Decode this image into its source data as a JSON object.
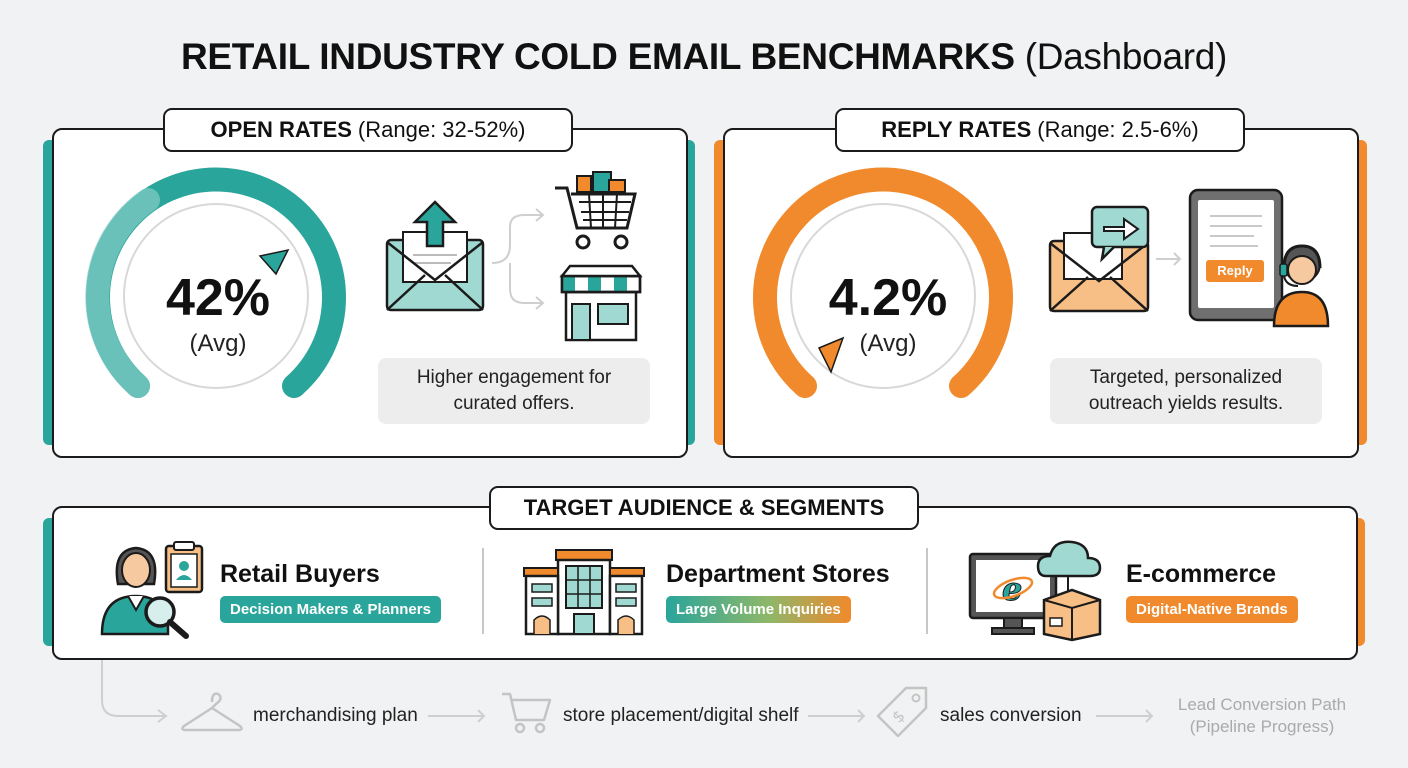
{
  "title": {
    "bold": "RETAIL INDUSTRY COLD EMAIL BENCHMARKS",
    "light": "(Dashboard)"
  },
  "open_rates": {
    "label_bold": "OPEN RATES",
    "label_range": "(Range: 32-52%)",
    "value": "42%",
    "avg": "(Avg)",
    "note_line1": "Higher engagement for",
    "note_line2": "curated offers.",
    "color": "#2aa59b"
  },
  "reply_rates": {
    "label_bold": "REPLY RATES",
    "label_range": "(Range: 2.5-6%)",
    "value": "4.2%",
    "avg": "(Avg)",
    "reply_chip": "Reply",
    "note_line1": "Targeted, personalized",
    "note_line2": "outreach yields results.",
    "color": "#f08a2c"
  },
  "segments": {
    "label": "TARGET AUDIENCE & SEGMENTS",
    "items": [
      {
        "title": "Retail Buyers",
        "tag": "Decision Makers & Planners",
        "icon": "buyer-icon"
      },
      {
        "title": "Department Stores",
        "tag": "Large Volume Inquiries",
        "icon": "department-store-icon"
      },
      {
        "title": "E-commerce",
        "tag": "Digital-Native Brands",
        "icon": "ecommerce-icon"
      }
    ]
  },
  "flow": {
    "steps": [
      "merchandising plan",
      "store placement/digital shelf",
      "sales conversion"
    ],
    "end_line1": "Lead Conversion Path",
    "end_line2": "(Pipeline Progress)"
  }
}
